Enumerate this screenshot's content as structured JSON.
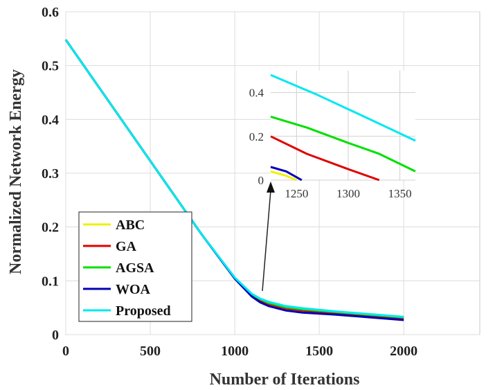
{
  "chart_data": {
    "type": "line",
    "title": "",
    "xlabel": "Number of Iterations",
    "ylabel": "Normalized Network Energy",
    "xlim": [
      0,
      2450
    ],
    "ylim": [
      0,
      0.6
    ],
    "x_ticks": [
      "0",
      "500",
      "1000",
      "1500",
      "2000"
    ],
    "y_ticks": [
      "0",
      "0.1",
      "0.2",
      "0.3",
      "0.4",
      "0.5",
      "0.6"
    ],
    "grid": true,
    "legend_position": "bottom-left",
    "series": [
      {
        "name": "ABC",
        "color": "#f0f000",
        "x": [
          0,
          200,
          400,
          600,
          800,
          1000,
          1100,
          1150,
          1200,
          1300,
          1400,
          1600,
          1800,
          2000
        ],
        "y": [
          0.548,
          0.458,
          0.368,
          0.278,
          0.188,
          0.105,
          0.074,
          0.063,
          0.056,
          0.048,
          0.044,
          0.039,
          0.034,
          0.029
        ]
      },
      {
        "name": "GA",
        "color": "#e00000",
        "x": [
          0,
          200,
          400,
          600,
          800,
          1000,
          1100,
          1150,
          1200,
          1300,
          1400,
          1600,
          1800,
          2000
        ],
        "y": [
          0.548,
          0.458,
          0.368,
          0.278,
          0.188,
          0.105,
          0.074,
          0.064,
          0.057,
          0.049,
          0.045,
          0.04,
          0.035,
          0.03
        ]
      },
      {
        "name": "AGSA",
        "color": "#00e000",
        "x": [
          0,
          200,
          400,
          600,
          800,
          1000,
          1100,
          1150,
          1200,
          1300,
          1400,
          1600,
          1800,
          2000
        ],
        "y": [
          0.548,
          0.458,
          0.368,
          0.278,
          0.188,
          0.105,
          0.075,
          0.066,
          0.059,
          0.051,
          0.047,
          0.042,
          0.037,
          0.032
        ]
      },
      {
        "name": "WOA",
        "color": "#0000b4",
        "x": [
          0,
          200,
          400,
          600,
          800,
          1000,
          1100,
          1150,
          1200,
          1300,
          1400,
          1600,
          1800,
          2000
        ],
        "y": [
          0.548,
          0.458,
          0.368,
          0.278,
          0.188,
          0.104,
          0.071,
          0.06,
          0.053,
          0.045,
          0.041,
          0.037,
          0.032,
          0.027
        ]
      },
      {
        "name": "Proposed",
        "color": "#00e8f0",
        "x": [
          0,
          200,
          400,
          600,
          800,
          1000,
          1100,
          1150,
          1200,
          1300,
          1400,
          1600,
          1800,
          2000
        ],
        "y": [
          0.548,
          0.458,
          0.368,
          0.278,
          0.188,
          0.106,
          0.076,
          0.067,
          0.061,
          0.053,
          0.049,
          0.043,
          0.038,
          0.033
        ]
      }
    ],
    "inset": {
      "xlim": [
        1225,
        1365
      ],
      "ylim": [
        0,
        0.5
      ],
      "x_ticks": [
        "1250",
        "1300",
        "1350"
      ],
      "y_ticks": [
        "0",
        "0.2",
        "0.4"
      ],
      "grid": true,
      "series": [
        {
          "name": "ABC",
          "x": [
            1225,
            1240,
            1250
          ],
          "y": [
            0.04,
            0.02,
            0.0
          ]
        },
        {
          "name": "GA",
          "x": [
            1225,
            1260,
            1300,
            1330
          ],
          "y": [
            0.2,
            0.12,
            0.05,
            0.0
          ]
        },
        {
          "name": "AGSA",
          "x": [
            1225,
            1260,
            1300,
            1330,
            1365
          ],
          "y": [
            0.29,
            0.24,
            0.17,
            0.12,
            0.04
          ]
        },
        {
          "name": "WOA",
          "x": [
            1225,
            1240,
            1255
          ],
          "y": [
            0.06,
            0.04,
            0.0
          ]
        },
        {
          "name": "Proposed",
          "x": [
            1225,
            1270,
            1320,
            1365
          ],
          "y": [
            0.48,
            0.39,
            0.28,
            0.18
          ]
        }
      ]
    }
  }
}
